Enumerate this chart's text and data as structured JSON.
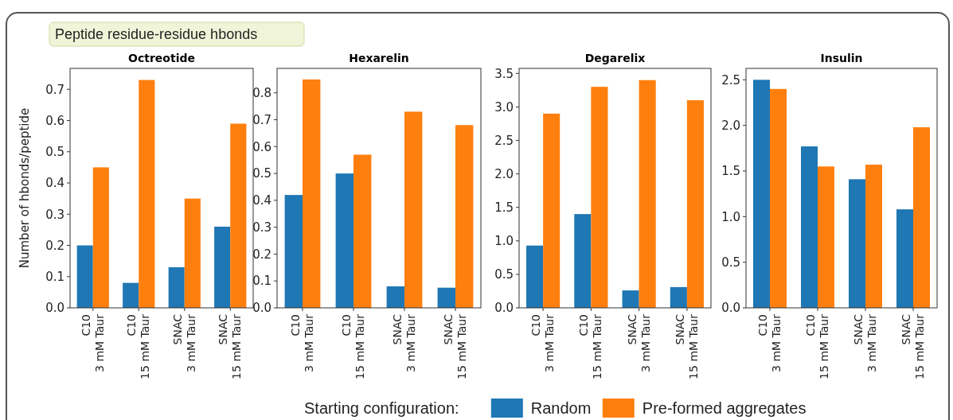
{
  "chart_data": [
    {
      "type": "bar",
      "title": "Octreotide",
      "ylabel": "Number of hbonds/peptide",
      "annotations": [
        "Peptide residue-residue hbonds"
      ],
      "legend": "bottom",
      "legend_title": "Starting configuration:",
      "categories": [
        "C10\n3 mM Taur",
        "C10\n15 mM Taur",
        "SNAC\n3 mM Taur",
        "SNAC\n15 mM Taur"
      ],
      "series": [
        {
          "name": "Random",
          "color": "#1f77b4",
          "values": [
            0.2,
            0.08,
            0.13,
            0.26
          ]
        },
        {
          "name": "Pre-formed aggregates",
          "color": "#ff7f0e",
          "values": [
            0.45,
            0.73,
            0.35,
            0.59
          ]
        }
      ],
      "ylim": [
        0,
        0.767
      ],
      "yticks": [
        {
          "value": 0,
          "label": "0.0"
        },
        0.1,
        0.2,
        0.3,
        0.4,
        0.5,
        0.6,
        0.7
      ]
    },
    {
      "type": "bar",
      "title": "Hexarelin",
      "categories": [
        "C10\n3 mM Taur",
        "C10\n15 mM Taur",
        "SNAC\n3 mM Taur",
        "SNAC\n15 mM Taur"
      ],
      "series": [
        {
          "color": "#1f77b4",
          "values": [
            0.42,
            0.5,
            0.08,
            0.075
          ]
        },
        {
          "color": "#ff7f0e",
          "values": [
            0.85,
            0.57,
            0.73,
            0.68
          ]
        }
      ],
      "ylim": [
        0,
        0.891
      ],
      "yticks": [
        {
          "value": 0,
          "label": "0.0"
        },
        0.1,
        0.2,
        0.3,
        0.4,
        0.5,
        0.6,
        0.7,
        0.8
      ]
    },
    {
      "type": "bar",
      "title": "Degarelix",
      "categories": [
        "C10\n3 mM Taur",
        "C10\n15 mM Taur",
        "SNAC\n3 mM Taur",
        "SNAC\n15 mM Taur"
      ],
      "series": [
        {
          "color": "#1f77b4",
          "values": [
            0.93,
            1.4,
            0.26,
            0.31
          ]
        },
        {
          "color": "#ff7f0e",
          "values": [
            2.9,
            3.3,
            3.4,
            3.1
          ]
        }
      ],
      "ylim": [
        0,
        3.575
      ],
      "yticks": [
        {
          "value": 0,
          "label": "0.0"
        },
        0.5,
        {
          "value": 1,
          "label": "1.0"
        },
        1.5,
        {
          "value": 2,
          "label": "2.0"
        },
        2.5,
        {
          "value": 3,
          "label": "3.0"
        },
        3.5
      ]
    },
    {
      "type": "bar",
      "title": "Insulin",
      "categories": [
        "C10\n3 mM Taur",
        "C10\n15 mM Taur",
        "SNAC\n3 mM Taur",
        "SNAC\n15 mM Taur"
      ],
      "series": [
        {
          "color": "#1f77b4",
          "values": [
            2.5,
            1.77,
            1.41,
            1.08
          ]
        },
        {
          "color": "#ff7f0e",
          "values": [
            2.4,
            1.55,
            1.57,
            1.98
          ]
        }
      ],
      "ylim": [
        0,
        2.625
      ],
      "yticks": [
        {
          "value": 0,
          "label": "0.0"
        },
        0.5,
        {
          "value": 1,
          "label": "1.0"
        },
        1.5,
        {
          "value": 2,
          "label": "2.0"
        },
        2.5
      ]
    }
  ]
}
